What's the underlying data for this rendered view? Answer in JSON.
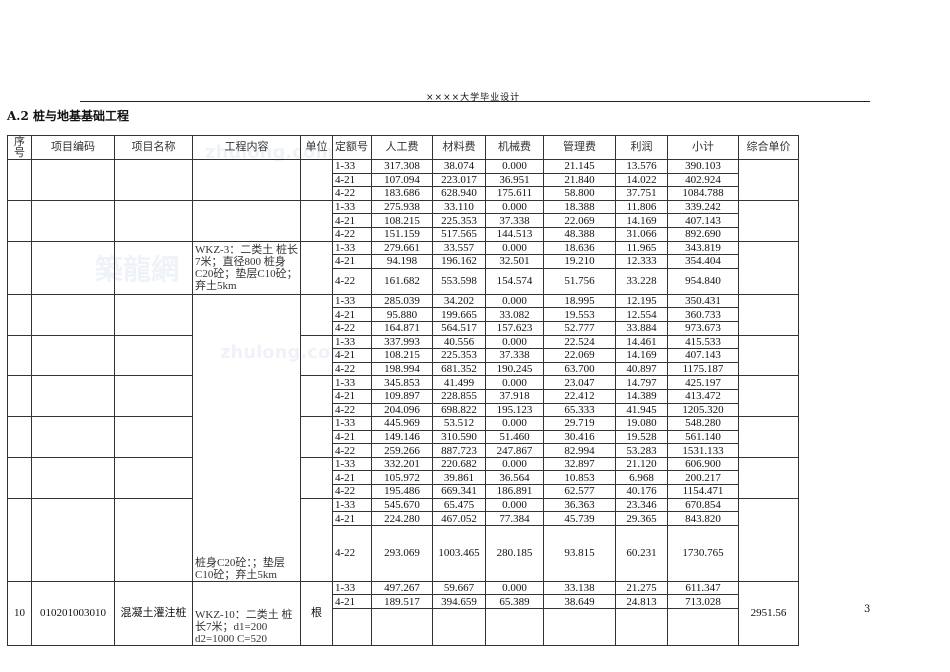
{
  "header": "××××大学毕业设计",
  "title": "A.2 桩与地基基础工程",
  "page_number": "3",
  "columns": [
    "序号",
    "项目编码",
    "项目名称",
    "工程内容",
    "单位",
    "定额号",
    "人工费",
    "材料费",
    "机械费",
    "管理费",
    "利润",
    "小计",
    "综合单价"
  ],
  "groups": [
    {
      "rows": [
        [
          "1-33",
          "317.308",
          "38.074",
          "0.000",
          "21.145",
          "13.576",
          "390.103"
        ],
        [
          "4-21",
          "107.094",
          "223.017",
          "36.951",
          "21.840",
          "14.022",
          "402.924"
        ],
        [
          "4-22",
          "183.686",
          "628.940",
          "175.611",
          "58.800",
          "37.751",
          "1084.788"
        ]
      ]
    },
    {
      "rows": [
        [
          "1-33",
          "275.938",
          "33.110",
          "0.000",
          "18.388",
          "11.806",
          "339.242"
        ],
        [
          "4-21",
          "108.215",
          "225.353",
          "37.338",
          "22.069",
          "14.169",
          "407.143"
        ],
        [
          "4-22",
          "151.159",
          "517.565",
          "144.513",
          "48.388",
          "31.066",
          "892.690"
        ]
      ]
    },
    {
      "content": "WKZ-3：二类土 桩长7米；直径800 桩身C20砼；垫层C10砼；弃土5km",
      "rows": [
        [
          "1-33",
          "279.661",
          "33.557",
          "0.000",
          "18.636",
          "11.965",
          "343.819"
        ],
        [
          "4-21",
          "94.198",
          "196.162",
          "32.501",
          "19.210",
          "12.333",
          "354.404"
        ],
        [
          "4-22",
          "161.682",
          "553.598",
          "154.574",
          "51.756",
          "33.228",
          "954.840"
        ]
      ]
    },
    {
      "content": "桩身C20砼：；垫层C10砼；弃土5km",
      "rows": [
        [
          "1-33",
          "285.039",
          "34.202",
          "0.000",
          "18.995",
          "12.195",
          "350.431"
        ],
        [
          "4-21",
          "95.880",
          "199.665",
          "33.082",
          "19.553",
          "12.554",
          "360.733"
        ],
        [
          "4-22",
          "164.871",
          "564.517",
          "157.623",
          "52.777",
          "33.884",
          "973.673"
        ]
      ]
    },
    {
      "rows": [
        [
          "1-33",
          "337.993",
          "40.556",
          "0.000",
          "22.524",
          "14.461",
          "415.533"
        ],
        [
          "4-21",
          "108.215",
          "225.353",
          "37.338",
          "22.069",
          "14.169",
          "407.143"
        ],
        [
          "4-22",
          "198.994",
          "681.352",
          "190.245",
          "63.700",
          "40.897",
          "1175.187"
        ]
      ]
    },
    {
      "rows": [
        [
          "1-33",
          "345.853",
          "41.499",
          "0.000",
          "23.047",
          "14.797",
          "425.197"
        ],
        [
          "4-21",
          "109.897",
          "228.855",
          "37.918",
          "22.412",
          "14.389",
          "413.472"
        ],
        [
          "4-22",
          "204.096",
          "698.822",
          "195.123",
          "65.333",
          "41.945",
          "1205.320"
        ]
      ]
    },
    {
      "rows": [
        [
          "1-33",
          "445.969",
          "53.512",
          "0.000",
          "29.719",
          "19.080",
          "548.280"
        ],
        [
          "4-21",
          "149.146",
          "310.590",
          "51.460",
          "30.416",
          "19.528",
          "561.140"
        ],
        [
          "4-22",
          "259.266",
          "887.723",
          "247.867",
          "82.994",
          "53.283",
          "1531.133"
        ]
      ]
    },
    {
      "rows": [
        [
          "1-33",
          "332.201",
          "220.682",
          "0.000",
          "32.897",
          "21.120",
          "606.900"
        ],
        [
          "4-21",
          "105.972",
          "39.861",
          "36.564",
          "10.853",
          "6.968",
          "200.217"
        ],
        [
          "4-22",
          "195.486",
          "669.341",
          "186.891",
          "62.577",
          "40.176",
          "1154.471"
        ]
      ]
    },
    {
      "rows": [
        [
          "1-33",
          "545.670",
          "65.475",
          "0.000",
          "36.363",
          "23.346",
          "670.854"
        ],
        [
          "4-21",
          "224.280",
          "467.052",
          "77.384",
          "45.739",
          "29.365",
          "843.820"
        ],
        [
          "4-22",
          "293.069",
          "1003.465",
          "280.185",
          "93.815",
          "60.231",
          "1730.765"
        ]
      ]
    },
    {
      "no": "10",
      "code": "010201003010",
      "name": "混凝土灌注桩",
      "content": "WKZ-10：二类土 桩长7米；d1=200 d2=1000 C=520",
      "unit": "根",
      "total": "2951.56",
      "rows": [
        [
          "1-33",
          "497.267",
          "59.667",
          "0.000",
          "33.138",
          "21.275",
          "611.347"
        ],
        [
          "4-21",
          "189.517",
          "394.659",
          "65.389",
          "38.649",
          "24.813",
          "713.028"
        ],
        [
          "",
          "",
          "",
          "",
          "",
          "",
          ""
        ]
      ]
    }
  ],
  "watermarks": [
    "zhulong.com",
    "築龍網"
  ]
}
